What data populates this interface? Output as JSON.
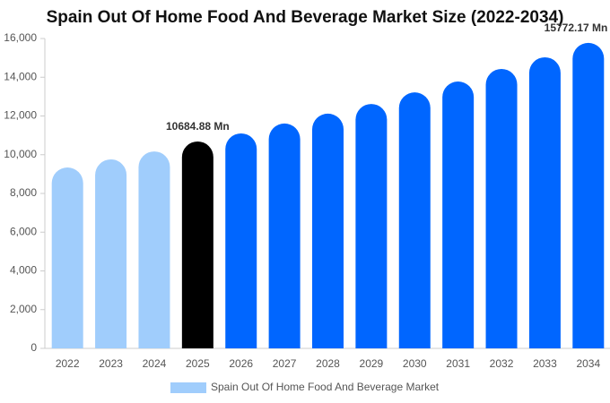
{
  "chart_data": {
    "type": "bar",
    "title": "Spain Out Of Home Food And Beverage Market Size (2022-2034)",
    "categories": [
      "2022",
      "2023",
      "2024",
      "2025",
      "2026",
      "2027",
      "2028",
      "2029",
      "2030",
      "2031",
      "2032",
      "2033",
      "2034"
    ],
    "series": [
      {
        "name": "Spain Out Of Home Food And Beverage Market",
        "color": "#a0cdfc",
        "values": [
          9340,
          9760,
          10170,
          10684.88,
          11100,
          11610,
          12120,
          12620,
          13220,
          13780,
          14430,
          15030,
          15772.17
        ],
        "value_labels": [
          null,
          null,
          null,
          "10684.88 Mn",
          null,
          null,
          null,
          null,
          null,
          null,
          null,
          null,
          "15772.17 Mn"
        ],
        "colors": [
          "#a0cdfc",
          "#a0cdfc",
          "#a0cdfc",
          "#000000",
          "#0066ff",
          "#0066ff",
          "#0066ff",
          "#0066ff",
          "#0066ff",
          "#0066ff",
          "#0066ff",
          "#0066ff",
          "#0066ff"
        ]
      }
    ],
    "ylim": [
      0,
      16000
    ],
    "yticks": [
      0,
      {
        "value": 2000,
        "label": "2,000"
      },
      {
        "value": 4000,
        "label": "4,000"
      },
      {
        "value": 6000,
        "label": "6,000"
      },
      {
        "value": 8000,
        "label": "8,000"
      },
      {
        "value": 10000,
        "label": "10,000"
      },
      {
        "value": 12000,
        "label": "12,000"
      },
      {
        "value": 14000,
        "label": "14,000"
      },
      {
        "value": 16000,
        "label": "16,000"
      }
    ],
    "legend": "bottom"
  }
}
